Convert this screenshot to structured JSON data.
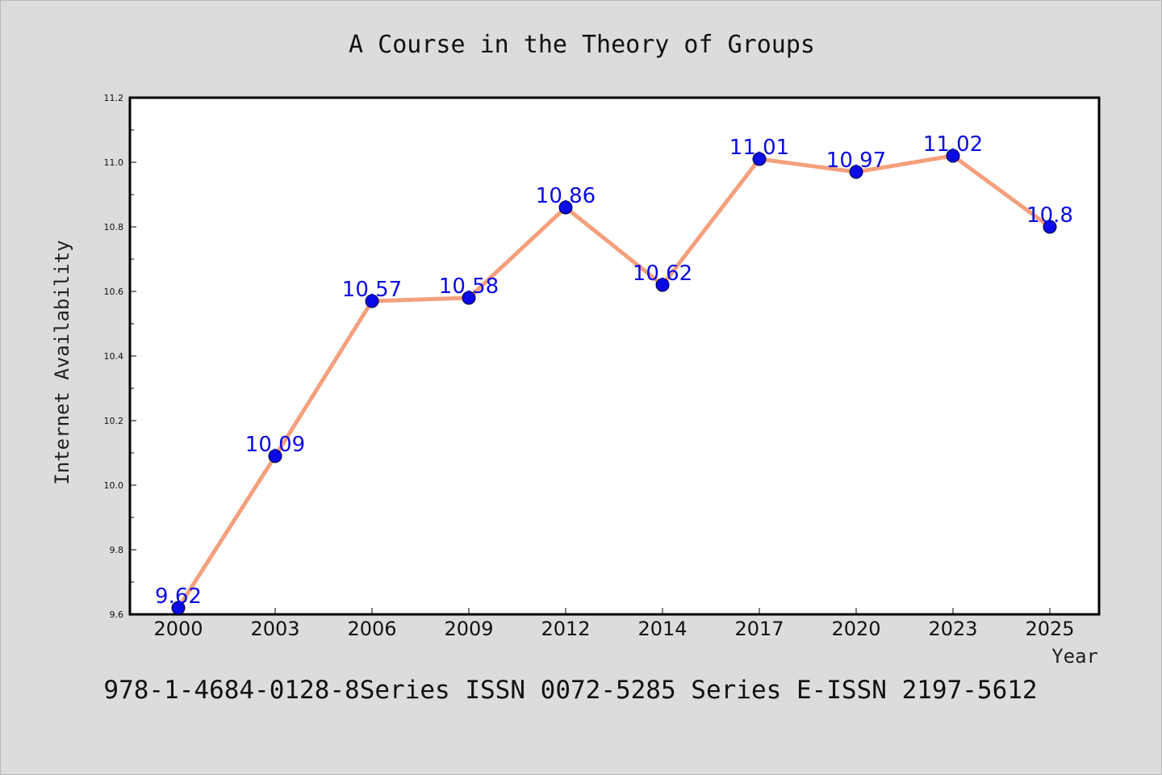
{
  "chart_data": {
    "type": "line",
    "title": "A Course in the Theory of Groups",
    "xlabel": "Year",
    "ylabel": "Internet Availability",
    "caption": "978-1-4684-0128-8Series ISSN 0072-5285 Series E-ISSN 2197-5612",
    "categories": [
      "2000",
      "2003",
      "2006",
      "2009",
      "2012",
      "2014",
      "2017",
      "2020",
      "2023",
      "2025"
    ],
    "series": [
      {
        "values": [
          9.62,
          10.09,
          10.57,
          10.58,
          10.86,
          10.62,
          11.01,
          10.97,
          11.02,
          10.8
        ],
        "labels": [
          "9.62",
          "10.09",
          "10.57",
          "10.58",
          "10.86",
          "10.62",
          "11.01",
          "10.97",
          "11.02",
          "10.8"
        ]
      }
    ],
    "ylim": [
      9.6,
      11.2
    ],
    "y_ticks": [
      "9.6",
      "9.8",
      "10.0",
      "10.2",
      "10.4",
      "10.6",
      "10.8",
      "11.0",
      "11.2"
    ],
    "grid": false,
    "legend": "none",
    "colors": {
      "line": "#f4a07c",
      "marker": "#0a0ae6",
      "data_label": "#0a0ae6",
      "background": "#dcdcdc",
      "plot_background": "#ffffff"
    }
  }
}
